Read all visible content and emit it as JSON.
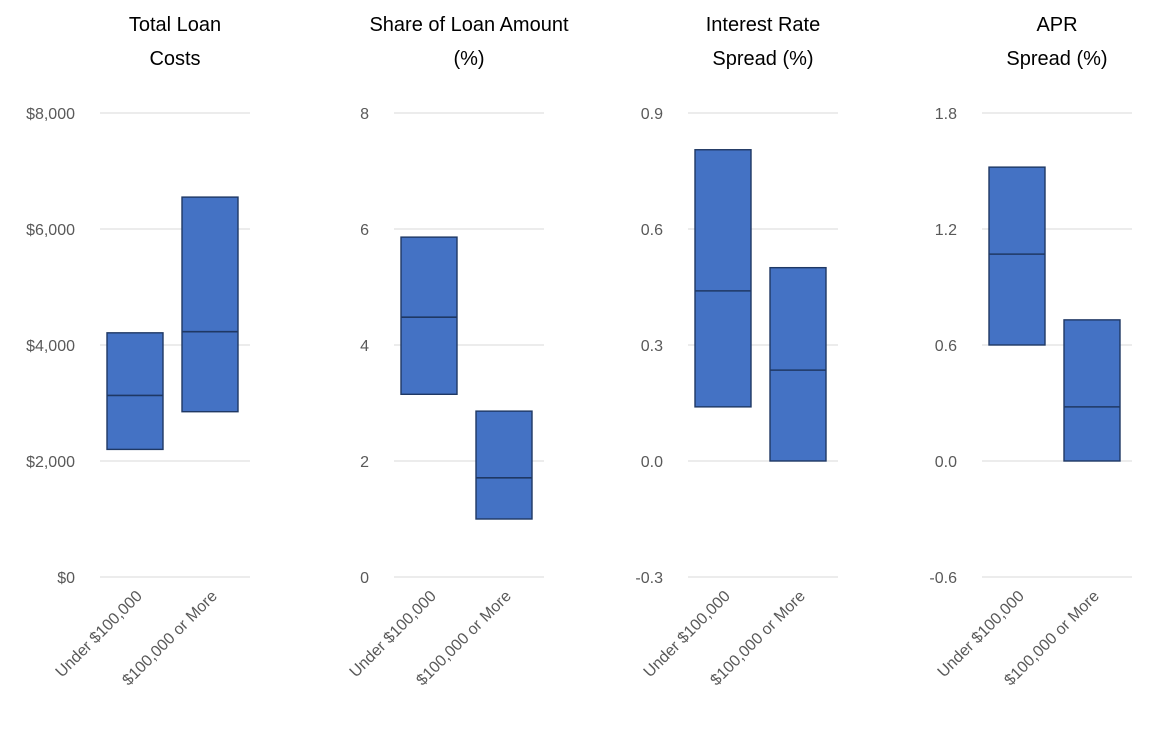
{
  "colors": {
    "box_fill": "#4472c4",
    "box_stroke": "#1f3864",
    "grid": "#d9d9d9",
    "tick_text": "#595959"
  },
  "chart_data": [
    {
      "type": "floating-bar",
      "title_lines": [
        "Total Loan",
        "Costs"
      ],
      "categories": [
        "Under $100,000",
        "$100,000 or More"
      ],
      "series": [
        {
          "values": [
            {
              "low": 2200,
              "median": 3130,
              "high": 4210
            },
            {
              "low": 2850,
              "median": 4230,
              "high": 6550
            }
          ]
        }
      ],
      "ylim": [
        0,
        8000
      ],
      "yticks": [
        0,
        2000,
        4000,
        6000,
        8000
      ],
      "ytick_labels": [
        "$0",
        "$2,000",
        "$4,000",
        "$6,000",
        "$8,000"
      ],
      "grid": true
    },
    {
      "type": "floating-bar",
      "title_lines": [
        "Share of Loan Amount",
        "(%)"
      ],
      "categories": [
        "Under $100,000",
        "$100,000 or More"
      ],
      "series": [
        {
          "values": [
            {
              "low": 3.15,
              "median": 4.48,
              "high": 5.86
            },
            {
              "low": 1.0,
              "median": 1.71,
              "high": 2.86
            }
          ]
        }
      ],
      "ylim": [
        0,
        8
      ],
      "yticks": [
        0,
        2,
        4,
        6,
        8
      ],
      "ytick_labels": [
        "0",
        "2",
        "4",
        "6",
        "8"
      ],
      "grid": true
    },
    {
      "type": "floating-bar",
      "title_lines": [
        "Interest Rate",
        "Spread (%)"
      ],
      "categories": [
        "Under $100,000",
        "$100,000 or More"
      ],
      "series": [
        {
          "values": [
            {
              "low": 0.14,
              "median": 0.44,
              "high": 0.805
            },
            {
              "low": 0.0,
              "median": 0.235,
              "high": 0.5
            }
          ]
        }
      ],
      "ylim": [
        -0.3,
        0.9
      ],
      "yticks": [
        -0.3,
        0.0,
        0.3,
        0.6,
        0.9
      ],
      "ytick_labels": [
        "-0.3",
        "0.0",
        "0.3",
        "0.6",
        "0.9"
      ],
      "grid": true
    },
    {
      "type": "floating-bar",
      "title_lines": [
        "APR",
        "Spread (%)"
      ],
      "categories": [
        "Under $100,000",
        "$100,000 or More"
      ],
      "series": [
        {
          "values": [
            {
              "low": 0.6,
              "median": 1.07,
              "high": 1.52
            },
            {
              "low": 0.0,
              "median": 0.28,
              "high": 0.73
            }
          ]
        }
      ],
      "ylim": [
        -0.6,
        1.8
      ],
      "yticks": [
        -0.6,
        0.0,
        0.6,
        1.2,
        1.8
      ],
      "ytick_labels": [
        "-0.6",
        "0.0",
        "0.6",
        "1.2",
        "1.8"
      ],
      "grid": true
    }
  ]
}
